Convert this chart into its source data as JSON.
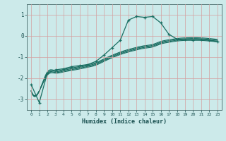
{
  "xlabel": "Humidex (Indice chaleur)",
  "bg_color": "#cceaea",
  "grid_color": "#d4a0a0",
  "line_color": "#1a6e62",
  "xlim": [
    -0.5,
    23.5
  ],
  "ylim": [
    -3.5,
    1.5
  ],
  "yticks": [
    -3,
    -2,
    -1,
    0,
    1
  ],
  "xticks": [
    0,
    1,
    2,
    3,
    4,
    5,
    6,
    7,
    8,
    9,
    10,
    11,
    12,
    13,
    14,
    15,
    16,
    17,
    18,
    19,
    20,
    21,
    22,
    23
  ],
  "series": [
    {
      "x": [
        0,
        1,
        2,
        3,
        4,
        5,
        6,
        7,
        8,
        9,
        10,
        11,
        12,
        13,
        14,
        15,
        16,
        17,
        18,
        19,
        20,
        21,
        22,
        23
      ],
      "y": [
        -2.3,
        -3.15,
        -1.75,
        -1.6,
        -1.55,
        -1.45,
        -1.4,
        -1.35,
        -1.2,
        -0.9,
        -0.55,
        -0.2,
        0.75,
        0.92,
        0.88,
        0.92,
        0.62,
        0.08,
        -0.15,
        -0.18,
        -0.2,
        -0.18,
        -0.2,
        -0.28
      ],
      "marker": true,
      "smooth": false
    },
    {
      "x": [
        0,
        1,
        2,
        3,
        4,
        5,
        6,
        7,
        8,
        9,
        10,
        11,
        12,
        13,
        14,
        15,
        16,
        17,
        18,
        19,
        20,
        21,
        22,
        23
      ],
      "y": [
        -2.6,
        -2.6,
        -1.75,
        -1.68,
        -1.62,
        -1.55,
        -1.48,
        -1.4,
        -1.3,
        -1.12,
        -0.95,
        -0.8,
        -0.68,
        -0.58,
        -0.5,
        -0.44,
        -0.3,
        -0.22,
        -0.16,
        -0.13,
        -0.12,
        -0.13,
        -0.16,
        -0.2
      ],
      "marker": false,
      "smooth": true
    },
    {
      "x": [
        0,
        1,
        2,
        3,
        4,
        5,
        6,
        7,
        8,
        9,
        10,
        11,
        12,
        13,
        14,
        15,
        16,
        17,
        18,
        19,
        20,
        21,
        22,
        23
      ],
      "y": [
        -2.6,
        -2.6,
        -1.8,
        -1.72,
        -1.66,
        -1.59,
        -1.52,
        -1.44,
        -1.34,
        -1.16,
        -0.99,
        -0.84,
        -0.72,
        -0.62,
        -0.54,
        -0.48,
        -0.34,
        -0.26,
        -0.2,
        -0.17,
        -0.16,
        -0.17,
        -0.2,
        -0.24
      ],
      "marker": false,
      "smooth": true
    },
    {
      "x": [
        0,
        1,
        2,
        3,
        4,
        5,
        6,
        7,
        8,
        9,
        10,
        11,
        12,
        13,
        14,
        15,
        16,
        17,
        18,
        19,
        20,
        21,
        22,
        23
      ],
      "y": [
        -2.6,
        -2.6,
        -1.85,
        -1.76,
        -1.7,
        -1.63,
        -1.56,
        -1.48,
        -1.38,
        -1.2,
        -1.03,
        -0.88,
        -0.76,
        -0.66,
        -0.58,
        -0.52,
        -0.38,
        -0.3,
        -0.24,
        -0.21,
        -0.2,
        -0.21,
        -0.24,
        -0.28
      ],
      "marker": false,
      "smooth": true
    },
    {
      "x": [
        0,
        1,
        2,
        3,
        4,
        5,
        6,
        7,
        8,
        9,
        10,
        11,
        12,
        13,
        14,
        15,
        16,
        17,
        18,
        19,
        20,
        21,
        22,
        23
      ],
      "y": [
        -2.6,
        -2.6,
        -1.7,
        -1.64,
        -1.58,
        -1.51,
        -1.44,
        -1.36,
        -1.26,
        -1.08,
        -0.91,
        -0.76,
        -0.64,
        -0.54,
        -0.46,
        -0.4,
        -0.26,
        -0.18,
        -0.12,
        -0.09,
        -0.08,
        -0.09,
        -0.12,
        -0.16
      ],
      "marker": false,
      "smooth": true
    }
  ]
}
